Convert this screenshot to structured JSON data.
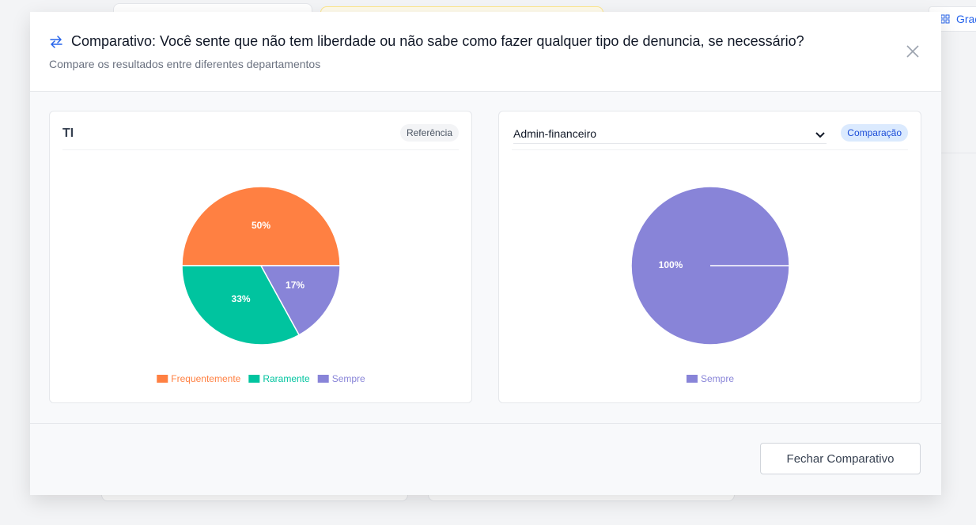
{
  "background": {
    "tab_label": "Grad"
  },
  "modal": {
    "title": "Comparativo: Você sente que não tem liberdade ou não sabe como fazer qualquer tipo de denuncia, se necessário?",
    "subtitle": "Compare os resultados entre diferentes departamentos",
    "close_button": "Fechar Comparativo"
  },
  "chart_data": [
    {
      "type": "pie",
      "title": "TI",
      "badge": "Referência",
      "categories": [
        "Frequentemente",
        "Raramente",
        "Sempre"
      ],
      "values": [
        50,
        33,
        17
      ],
      "value_labels": [
        "50%",
        "33%",
        "17%"
      ],
      "colors": [
        "#ff8042",
        "#00c49f",
        "#8884d8"
      ]
    },
    {
      "type": "pie",
      "title": "Admin-financeiro",
      "badge": "Comparação",
      "categories": [
        "Sempre"
      ],
      "values": [
        100
      ],
      "value_labels": [
        "100%"
      ],
      "colors": [
        "#8884d8"
      ]
    }
  ]
}
